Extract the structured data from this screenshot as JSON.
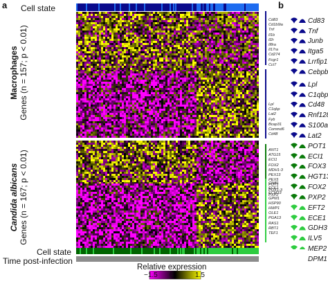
{
  "panels": {
    "a": "a",
    "b": "b"
  },
  "rows": {
    "cell_state_top": "Cell state",
    "cell_state_bottom": "Cell state",
    "time_post_infection": "Time post-infection"
  },
  "y_labels": {
    "macrophages_title": "Macrophages",
    "macrophages_sub": "Genes (n = 157; p < 0.01)",
    "candida_title": "Candida albicans",
    "candida_sub": "Genes (n = 167; p < 0.01)"
  },
  "tiny_gene_lists": {
    "mac_up": [
      "Cd83",
      "Cd1b9ia",
      "Tnf",
      "Il1b",
      "Il2r",
      "Il8ra",
      "Il17ra",
      "Cd274",
      "Fcgr1",
      "Ccl7"
    ],
    "mac_down": [
      "Lpl",
      "C1qbp",
      "Lat2",
      "Fyb",
      "Bcap31",
      "Commd6",
      "Cd48"
    ],
    "ca_up": [
      "ANT1",
      "ATG15",
      "ECI1",
      "FOX2",
      "MDH1-3",
      "PEX13",
      "PEX5",
      "POT1",
      "POX1-3",
      "PXP2"
    ],
    "ca_down": [
      "CNB1",
      "ECE1",
      "ECM33",
      "GPM1",
      "HSP90",
      "HWP1",
      "OLE1",
      "PGA13",
      "RAS1",
      "RBT1",
      "TEF1"
    ]
  },
  "panel_b_genes": {
    "mac_up": [
      "Cd83",
      "Tnf",
      "Junb",
      "Itga5",
      "Lrrfip1",
      "Cebpb"
    ],
    "mac_down": [
      "Lpl",
      "C1qbp",
      "Cd48",
      "Rnf128",
      "S100a1",
      "Lat2"
    ],
    "ca_up": [
      "POT1",
      "ECI1",
      "FOX3",
      "HGT13",
      "FOX2",
      "PXP2"
    ],
    "ca_down": [
      "EFT2",
      "ECE1",
      "GDH3",
      "ILV5",
      "MEP2",
      "DPM1"
    ]
  },
  "legend": {
    "title": "Relative expression",
    "ticks": [
      "−1.5",
      "0",
      "1.5"
    ],
    "colors": {
      "low": "#ff00ff",
      "mid": "#000000",
      "high": "#ffff00"
    }
  },
  "colors": {
    "macrophage_dark": "#0a0a8c",
    "macrophage_light": "#1e6cf0",
    "candida_dark": "#006400",
    "candida_light": "#2ecc40",
    "time_bar": "#8c8c8c"
  }
}
